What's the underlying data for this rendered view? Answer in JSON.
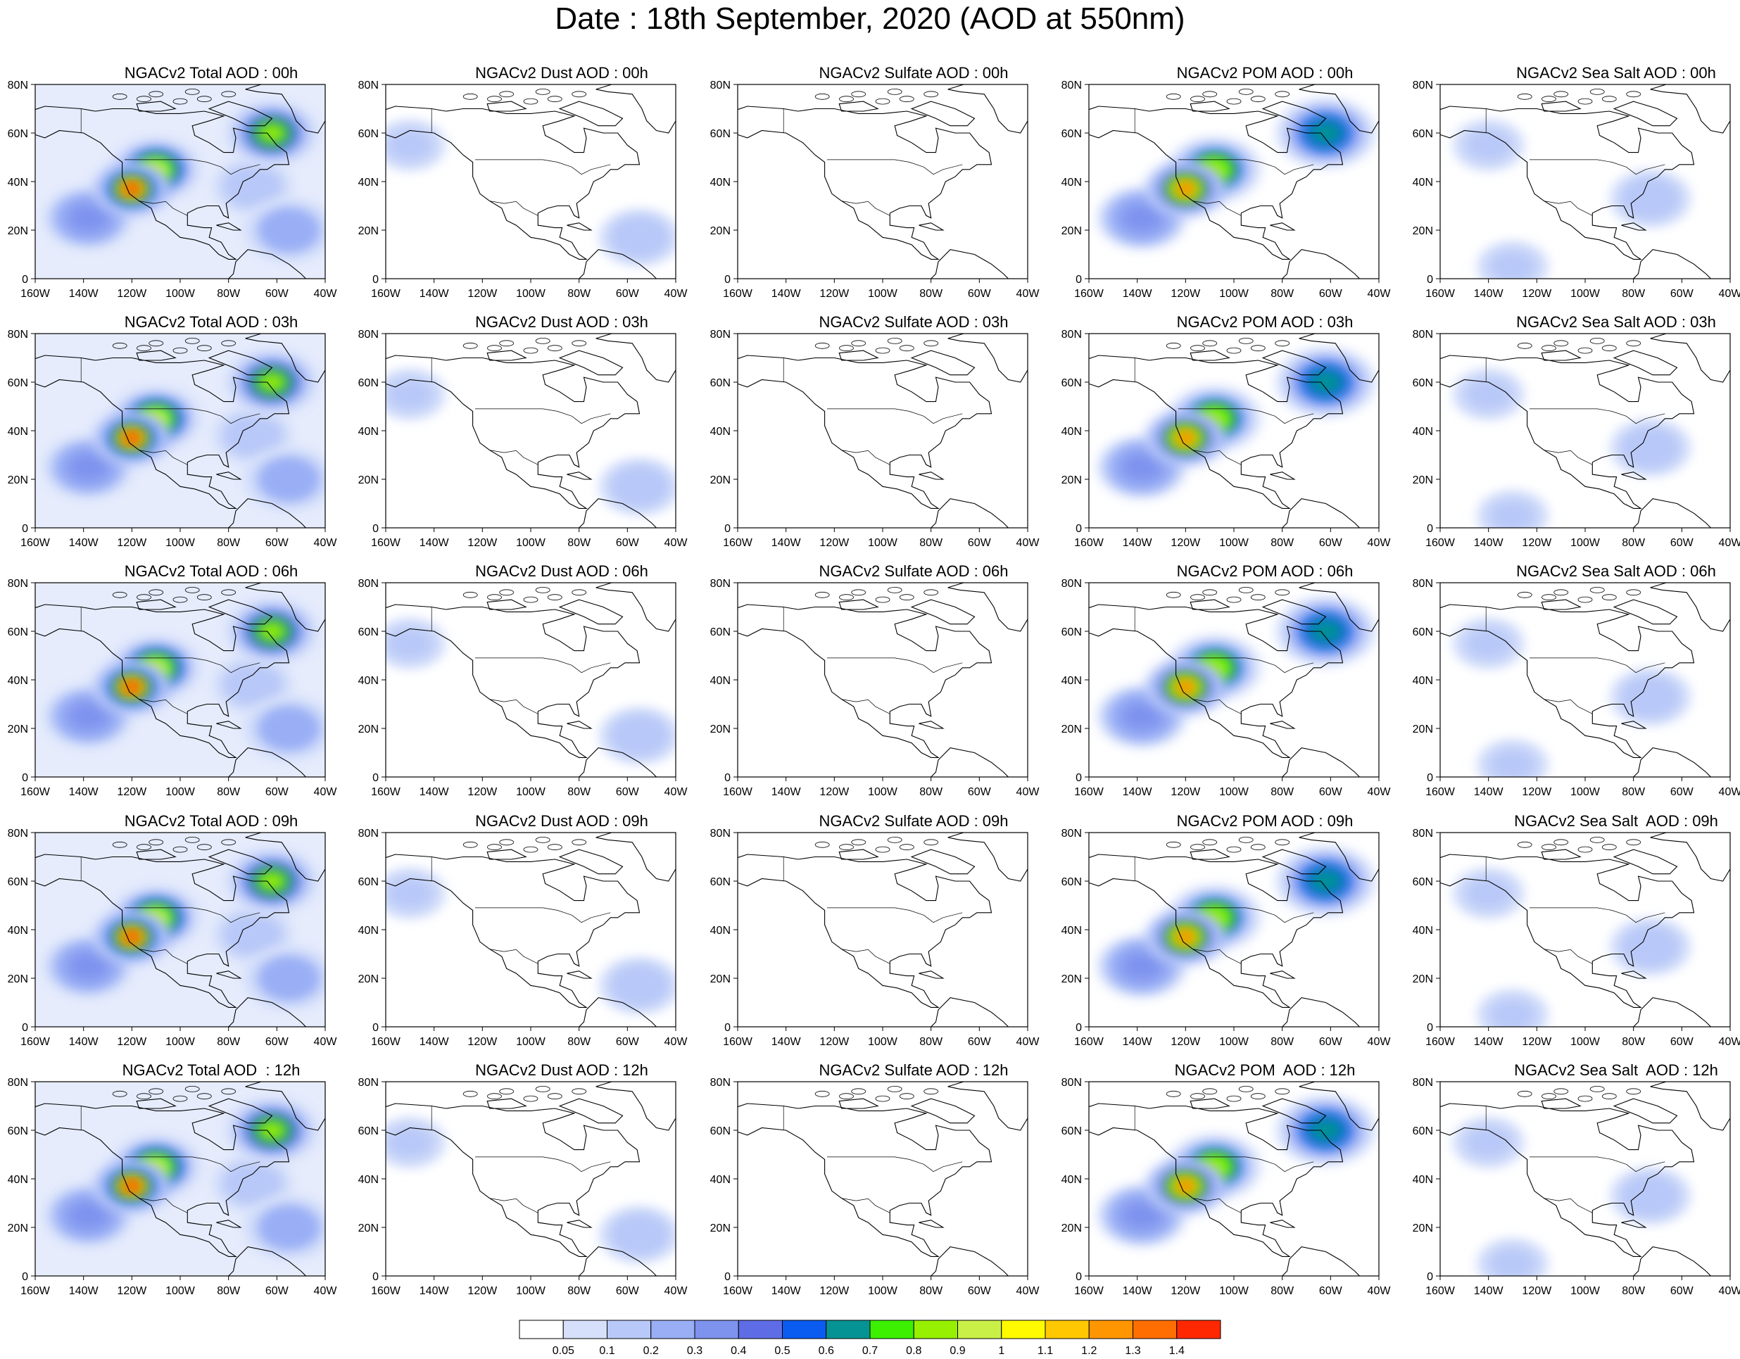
{
  "title": "Date : 18th September, 2020 (AOD at 550nm)",
  "panel_rows": [
    [
      "NGACv2 Total AOD : 00h",
      "NGACv2 Dust AOD : 00h",
      "NGACv2 Sulfate AOD : 00h",
      "NGACv2 POM AOD : 00h",
      "NGACv2 Sea Salt AOD : 00h"
    ],
    [
      "NGACv2 Total AOD : 03h",
      "NGACv2 Dust AOD : 03h",
      "NGACv2 Sulfate AOD : 03h",
      "NGACv2 POM AOD : 03h",
      "NGACv2 Sea Salt AOD : 03h"
    ],
    [
      "NGACv2 Total AOD : 06h",
      "NGACv2 Dust AOD : 06h",
      "NGACv2 Sulfate AOD : 06h",
      "NGACv2 POM AOD : 06h",
      "NGACv2 Sea Salt AOD : 06h"
    ],
    [
      "NGACv2 Total AOD : 09h",
      "NGACv2 Dust AOD : 09h",
      "NGACv2 Sulfate AOD : 09h",
      "NGACv2 POM AOD : 09h",
      "NGACv2 Sea Salt  AOD : 09h"
    ],
    [
      "NGACv2 Total AOD  : 12h",
      "NGACv2 Dust AOD : 12h",
      "NGACv2 Sulfate AOD : 12h",
      "NGACv2 POM  AOD : 12h",
      "NGACv2 Sea Salt  AOD : 12h"
    ]
  ],
  "map_axes": {
    "lon_ticks": [
      "160W",
      "140W",
      "120W",
      "100W",
      "80W",
      "60W",
      "40W"
    ],
    "lat_ticks": [
      "0",
      "20N",
      "40N",
      "60N",
      "80N"
    ],
    "lon_range": [
      -160,
      -40
    ],
    "lat_range": [
      0,
      80
    ]
  },
  "colorbar": {
    "levels": [
      "0.05",
      "0.1",
      "0.2",
      "0.3",
      "0.4",
      "0.5",
      "0.6",
      "0.7",
      "0.8",
      "0.9",
      "1",
      "1.1",
      "1.2",
      "1.3",
      "1.4"
    ],
    "colors": [
      "#ffffff",
      "#d6e0fa",
      "#b8c8f8",
      "#99aef5",
      "#7e93ee",
      "#5e6de5",
      "#0a5cf0",
      "#069394",
      "#3cf000",
      "#96f000",
      "#c8f046",
      "#fffa00",
      "#ffc800",
      "#ff9600",
      "#ff6e00",
      "#ff2800"
    ]
  },
  "plumes": {
    "Total": [
      {
        "lon": -120,
        "lat": 37,
        "value": 1.45
      },
      {
        "lon": -110,
        "lat": 45,
        "value": 0.9
      },
      {
        "lon": -62,
        "lat": 60,
        "value": 0.8
      },
      {
        "lon": -138,
        "lat": 25,
        "value": 0.35
      },
      {
        "lon": -55,
        "lat": 20,
        "value": 0.25
      },
      {
        "lon": -70,
        "lat": 38,
        "value": 0.15
      }
    ],
    "Dust": [
      {
        "lon": -55,
        "lat": 17,
        "value": 0.15
      },
      {
        "lon": -150,
        "lat": 55,
        "value": 0.1
      }
    ],
    "Sulfate": [],
    "POM": [
      {
        "lon": -120,
        "lat": 37,
        "value": 1.3
      },
      {
        "lon": -108,
        "lat": 45,
        "value": 0.85
      },
      {
        "lon": -62,
        "lat": 60,
        "value": 0.6
      },
      {
        "lon": -138,
        "lat": 25,
        "value": 0.35
      }
    ],
    "Sea Salt": [
      {
        "lon": -140,
        "lat": 55,
        "value": 0.1
      },
      {
        "lon": -73,
        "lat": 33,
        "value": 0.15
      },
      {
        "lon": -130,
        "lat": 5,
        "value": 0.1
      }
    ]
  }
}
